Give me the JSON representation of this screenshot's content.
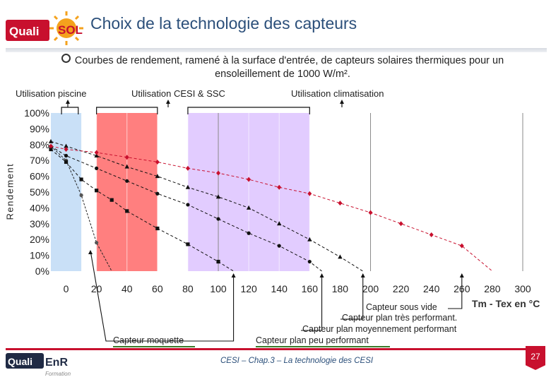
{
  "header": {
    "logo_text": "Quali'SOL",
    "title": "Choix de la technologie des capteurs"
  },
  "subtitle": "Courbes de rendement, ramené à la surface d'entrée,  de capteurs solaires thermiques pour un ensoleillement de 1000 W/m².",
  "usages": {
    "piscine": "Utilisation piscine",
    "cesi_ssc": "Utilisation CESI & SSC",
    "climatisation": "Utilisation climatisation"
  },
  "callouts": {
    "moquette": "Capteur moquette",
    "peu": "Capteur plan peu performant",
    "moyen": "Capteur plan moyennement performant",
    "tres": "Capteur plan très performant.",
    "vide": "Capteur sous vide"
  },
  "footer": {
    "logo_text": "Quali'EnR",
    "logo_sub": "Formation",
    "caption": "CESI – Chap.3 – La technologie des CESI",
    "page_number": "27"
  },
  "colors": {
    "title": "#2b4f7a",
    "piscine_band": "#c9e0f7",
    "cesi_band": "#ff7f7f",
    "clim_band": "#e2ccff",
    "vide_series": "#c8102e",
    "accent": "#c8102e"
  },
  "chart_data": {
    "type": "line",
    "xlabel": "Tm - Tex en °C",
    "ylabel": "Rendement",
    "xlim": [
      -10,
      300
    ],
    "ylim": [
      0,
      100
    ],
    "x_ticks": [
      0,
      20,
      40,
      60,
      80,
      100,
      120,
      140,
      160,
      180,
      200,
      220,
      240,
      260,
      280,
      300
    ],
    "y_ticks": [
      "0%",
      "10%",
      "20%",
      "30%",
      "40%",
      "50%",
      "60%",
      "70%",
      "80%",
      "90%",
      "100%"
    ],
    "grid": "vertical",
    "bands": [
      {
        "usage": "piscine",
        "x": [
          -10,
          10
        ]
      },
      {
        "usage": "cesi_ssc",
        "x": [
          20,
          60
        ]
      },
      {
        "usage": "climatisation",
        "x": [
          80,
          160
        ]
      }
    ],
    "series": [
      {
        "curve": "moquette",
        "marker": "circle",
        "points": [
          [
            -10,
            79
          ],
          [
            0,
            70
          ],
          [
            10,
            48
          ],
          [
            20,
            18
          ],
          [
            30,
            0
          ]
        ]
      },
      {
        "curve": "peu",
        "marker": "square",
        "points": [
          [
            -10,
            77
          ],
          [
            0,
            69
          ],
          [
            10,
            58
          ],
          [
            20,
            51
          ],
          [
            30,
            45
          ],
          [
            40,
            38
          ],
          [
            60,
            27
          ],
          [
            80,
            17
          ],
          [
            100,
            6
          ],
          [
            110,
            0
          ]
        ]
      },
      {
        "curve": "moyen",
        "marker": "circle",
        "points": [
          [
            -10,
            79
          ],
          [
            0,
            73
          ],
          [
            20,
            65
          ],
          [
            40,
            57
          ],
          [
            60,
            49
          ],
          [
            80,
            42
          ],
          [
            100,
            33
          ],
          [
            120,
            24
          ],
          [
            140,
            16
          ],
          [
            160,
            6
          ],
          [
            168,
            0
          ]
        ]
      },
      {
        "curve": "tres",
        "marker": "triangle",
        "points": [
          [
            -10,
            82
          ],
          [
            0,
            79
          ],
          [
            20,
            73
          ],
          [
            40,
            66
          ],
          [
            60,
            60
          ],
          [
            80,
            53
          ],
          [
            100,
            47
          ],
          [
            120,
            40
          ],
          [
            140,
            30
          ],
          [
            160,
            20
          ],
          [
            180,
            9
          ],
          [
            195,
            0
          ]
        ]
      },
      {
        "curve": "vide",
        "marker": "diamond",
        "points": [
          [
            -10,
            79
          ],
          [
            0,
            77
          ],
          [
            20,
            75
          ],
          [
            40,
            72
          ],
          [
            60,
            69
          ],
          [
            80,
            65
          ],
          [
            100,
            62
          ],
          [
            120,
            58
          ],
          [
            140,
            53
          ],
          [
            160,
            49
          ],
          [
            180,
            43
          ],
          [
            200,
            37
          ],
          [
            220,
            30
          ],
          [
            240,
            23
          ],
          [
            260,
            16
          ],
          [
            280,
            0
          ]
        ]
      }
    ]
  }
}
